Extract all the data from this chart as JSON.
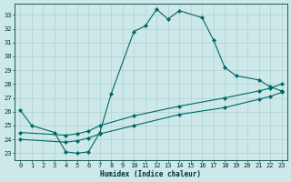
{
  "line1_x": [
    0,
    1,
    3,
    4,
    5,
    6,
    7,
    8,
    10,
    11,
    12,
    13,
    14,
    16,
    17,
    18,
    19,
    21,
    22,
    23
  ],
  "line1_y": [
    26.1,
    25.0,
    24.5,
    23.1,
    23.0,
    23.1,
    24.5,
    27.3,
    31.8,
    32.2,
    33.4,
    32.7,
    33.3,
    32.8,
    31.2,
    29.2,
    28.6,
    28.3,
    27.8,
    27.5
  ],
  "line2_x": [
    0,
    4,
    5,
    6,
    7,
    10,
    14,
    18,
    21,
    22,
    23
  ],
  "line2_y": [
    24.5,
    24.3,
    24.4,
    24.6,
    25.0,
    25.7,
    26.4,
    27.0,
    27.5,
    27.7,
    28.0
  ],
  "line3_x": [
    0,
    4,
    5,
    6,
    7,
    10,
    14,
    18,
    21,
    22,
    23
  ],
  "line3_y": [
    24.0,
    23.8,
    23.9,
    24.1,
    24.4,
    25.0,
    25.8,
    26.3,
    26.9,
    27.1,
    27.4
  ],
  "bg_color": "#cce8e8",
  "grid_major_color": "#aacccc",
  "grid_minor_color": "#bbdddd",
  "line_color": "#006868",
  "xlabel": "Humidex (Indice chaleur)",
  "ylim": [
    22.5,
    33.8
  ],
  "xlim": [
    -0.5,
    23.5
  ],
  "yticks": [
    23,
    24,
    25,
    26,
    27,
    28,
    29,
    30,
    31,
    32,
    33
  ],
  "xticks": [
    0,
    1,
    2,
    3,
    4,
    5,
    6,
    7,
    8,
    9,
    10,
    11,
    12,
    13,
    14,
    15,
    16,
    17,
    18,
    19,
    20,
    21,
    22,
    23
  ],
  "tick_fontsize": 5,
  "xlabel_fontsize": 5.5
}
